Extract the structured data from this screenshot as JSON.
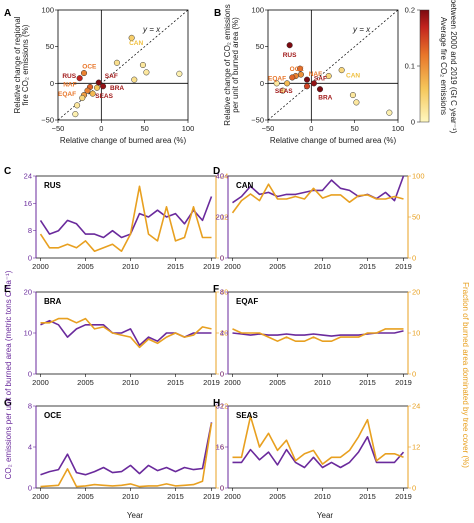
{
  "figure": {
    "colorbar_min": 0,
    "colorbar_max": 0.2
  },
  "chart_data": [
    {
      "panel": "A",
      "type": "scatter",
      "xlabel": "Relative change of burned area (%)",
      "ylabel": "Relative change of regional fire CO₂ emissions (%)",
      "xlim": [
        -50,
        100
      ],
      "ylim": [
        -50,
        100
      ],
      "xticks": [
        -50,
        0,
        50,
        100
      ],
      "yticks": [
        -50,
        0,
        50,
        100
      ],
      "x_tick_labels": [
        "−50",
        "0",
        "50",
        "100"
      ],
      "y_tick_labels": [
        "−50",
        "0",
        "50",
        "100"
      ],
      "identity_label": "y = x",
      "points": [
        {
          "x": -3,
          "y": 1,
          "c": 0.2
        },
        {
          "x": -25,
          "y": 7,
          "c": 0.17
        },
        {
          "x": -20,
          "y": 14,
          "c": 0.11
        },
        {
          "x": -13,
          "y": -5,
          "c": 0.13
        },
        {
          "x": -16,
          "y": -10,
          "c": 0.11
        },
        {
          "x": -20,
          "y": -16,
          "c": 0.09
        },
        {
          "x": -10,
          "y": -14,
          "c": 0.07
        },
        {
          "x": -5,
          "y": -6,
          "c": 0.06
        },
        {
          "x": 2,
          "y": -4,
          "c": 0.19
        },
        {
          "x": -22,
          "y": -20,
          "c": 0.04
        },
        {
          "x": -28,
          "y": -30,
          "c": 0.02
        },
        {
          "x": 35,
          "y": 62,
          "c": 0.05
        },
        {
          "x": 18,
          "y": 28,
          "c": 0.03
        },
        {
          "x": 48,
          "y": 25,
          "c": 0.02
        },
        {
          "x": 52,
          "y": 15,
          "c": 0.02
        },
        {
          "x": 38,
          "y": 5,
          "c": 0.03
        },
        {
          "x": 90,
          "y": 13,
          "c": 0.01
        },
        {
          "x": -30,
          "y": -42,
          "c": 0.01
        }
      ],
      "labels": [
        {
          "text": "RUS",
          "x": -45,
          "y": 7,
          "c": 0.2
        },
        {
          "text": "OCE",
          "x": -22,
          "y": 20,
          "c": 0.11
        },
        {
          "text": "CAN",
          "x": 32,
          "y": 52,
          "c": 0.04
        },
        {
          "text": "SAF",
          "x": 4,
          "y": 7,
          "c": 0.2
        },
        {
          "text": "NAF",
          "x": -44,
          "y": -4,
          "c": 0.13
        },
        {
          "text": "BRA",
          "x": 10,
          "y": -9,
          "c": 0.2
        },
        {
          "text": "EQAF",
          "x": -50,
          "y": -17,
          "c": 0.11
        },
        {
          "text": "SEAS",
          "x": -7,
          "y": -20,
          "c": 0.2
        }
      ]
    },
    {
      "panel": "B",
      "type": "scatter",
      "xlabel": "Relative change of burned area (%)",
      "ylabel": "Relative change of CO₂ emissions per unit of burned area (%)",
      "xlim": [
        -50,
        100
      ],
      "ylim": [
        -50,
        100
      ],
      "xticks": [
        -50,
        0,
        50,
        100
      ],
      "yticks": [
        -50,
        0,
        50,
        100
      ],
      "x_tick_labels": [
        "−50",
        "0",
        "50",
        "100"
      ],
      "y_tick_labels": [
        "−50",
        "0",
        "50",
        "100"
      ],
      "identity_label": "y = x",
      "points": [
        {
          "x": -25,
          "y": 52,
          "c": 0.2
        },
        {
          "x": -13,
          "y": 20,
          "c": 0.13
        },
        {
          "x": -5,
          "y": 5,
          "c": 0.2
        },
        {
          "x": -12,
          "y": 12,
          "c": 0.1
        },
        {
          "x": -18,
          "y": 10,
          "c": 0.11
        },
        {
          "x": -22,
          "y": 8,
          "c": 0.13
        },
        {
          "x": -28,
          "y": 0,
          "c": 0.07
        },
        {
          "x": -33,
          "y": -10,
          "c": 0.03
        },
        {
          "x": -5,
          "y": -4,
          "c": 0.15
        },
        {
          "x": 3,
          "y": 0,
          "c": 0.19
        },
        {
          "x": 10,
          "y": -8,
          "c": 0.2
        },
        {
          "x": 20,
          "y": 10,
          "c": 0.04
        },
        {
          "x": 35,
          "y": 18,
          "c": 0.04
        },
        {
          "x": 48,
          "y": -16,
          "c": 0.02
        },
        {
          "x": 52,
          "y": -26,
          "c": 0.02
        },
        {
          "x": 90,
          "y": -40,
          "c": 0.01
        },
        {
          "x": -40,
          "y": 0,
          "c": 0.02
        }
      ],
      "labels": [
        {
          "text": "RUS",
          "x": -33,
          "y": 36,
          "c": 0.2
        },
        {
          "text": "OCE",
          "x": -25,
          "y": 17,
          "c": 0.11
        },
        {
          "text": "EQAF",
          "x": -50,
          "y": 4,
          "c": 0.11
        },
        {
          "text": "NAF",
          "x": -3,
          "y": 10,
          "c": 0.13
        },
        {
          "text": "SAF",
          "x": 3,
          "y": 4,
          "c": 0.2
        },
        {
          "text": "SEAS",
          "x": -42,
          "y": -13,
          "c": 0.2
        },
        {
          "text": "CAN",
          "x": 40,
          "y": 8,
          "c": 0.04
        },
        {
          "text": "BRA",
          "x": 8,
          "y": -22,
          "c": 0.2
        }
      ]
    },
    {
      "panel": "C",
      "type": "line",
      "title": "RUS",
      "x": [
        2000,
        2001,
        2002,
        2003,
        2004,
        2005,
        2006,
        2007,
        2008,
        2009,
        2010,
        2011,
        2012,
        2013,
        2014,
        2015,
        2016,
        2017,
        2018,
        2019
      ],
      "series": [
        {
          "axis": "left",
          "color": "#6a2a9c",
          "values": [
            11,
            7,
            8,
            11,
            10,
            7,
            7,
            6,
            8,
            6,
            7,
            13,
            12,
            14,
            12,
            13,
            10,
            14,
            11,
            18
          ]
        },
        {
          "axis": "right",
          "color": "#e8a020",
          "values": [
            7,
            3,
            3,
            4,
            3,
            5,
            2,
            3,
            4,
            2,
            7,
            21,
            7,
            5,
            15,
            5,
            6,
            15,
            6,
            6
          ]
        }
      ],
      "ylim_left": [
        0,
        24
      ],
      "ylim_right": [
        0,
        24
      ],
      "yticks_left": [
        0,
        8,
        16,
        24
      ],
      "yticks_right": [
        0,
        12,
        24
      ],
      "xticks": [
        2000,
        2005,
        2010,
        2015,
        2019
      ]
    },
    {
      "panel": "D",
      "type": "line",
      "title": "CAN",
      "x": [
        2000,
        2001,
        2002,
        2003,
        2004,
        2005,
        2006,
        2007,
        2008,
        2009,
        2010,
        2011,
        2012,
        2013,
        2014,
        2015,
        2016,
        2017,
        2018,
        2019
      ],
      "series": [
        {
          "axis": "left",
          "color": "#6a2a9c",
          "values": [
            27,
            30,
            35,
            31,
            32,
            30,
            31,
            31,
            32,
            33,
            33,
            38,
            34,
            33,
            30,
            31,
            29,
            32,
            28,
            40
          ]
        },
        {
          "axis": "right",
          "color": "#e8a020",
          "values": [
            55,
            70,
            78,
            70,
            90,
            72,
            72,
            75,
            72,
            85,
            73,
            77,
            77,
            68,
            76,
            77,
            72,
            72,
            75,
            72
          ]
        }
      ],
      "ylim_left": [
        0,
        40
      ],
      "ylim_right": [
        0,
        100
      ],
      "yticks_left": [
        0,
        20,
        40
      ],
      "yticks_right": [
        0,
        50,
        100
      ],
      "xticks": [
        2000,
        2005,
        2010,
        2015,
        2019
      ]
    },
    {
      "panel": "E",
      "type": "line",
      "title": "BRA",
      "x": [
        2000,
        2001,
        2002,
        2003,
        2004,
        2005,
        2006,
        2007,
        2008,
        2009,
        2010,
        2011,
        2012,
        2013,
        2014,
        2015,
        2016,
        2017,
        2018,
        2019
      ],
      "series": [
        {
          "axis": "left",
          "color": "#6a2a9c",
          "values": [
            12,
            13,
            12,
            9,
            11,
            12,
            12,
            12,
            10,
            10,
            11,
            7,
            9,
            8,
            10,
            10,
            9,
            10,
            10,
            10
          ]
        },
        {
          "axis": "right",
          "color": "#e8a020",
          "values": [
            25,
            25,
            27,
            27,
            25,
            27,
            22,
            23,
            20,
            19,
            18,
            13,
            17,
            15,
            18,
            20,
            18,
            19,
            23,
            22
          ]
        }
      ],
      "ylim_left": [
        0,
        20
      ],
      "ylim_right": [
        0,
        40
      ],
      "yticks_left": [
        0,
        10,
        20
      ],
      "yticks_right": [
        0,
        20,
        40
      ],
      "xticks": [
        2000,
        2005,
        2010,
        2015,
        2019
      ]
    },
    {
      "panel": "F",
      "type": "line",
      "title": "EQAF",
      "x": [
        2000,
        2001,
        2002,
        2003,
        2004,
        2005,
        2006,
        2007,
        2008,
        2009,
        2010,
        2011,
        2012,
        2013,
        2014,
        2015,
        2016,
        2017,
        2018,
        2019
      ],
      "series": [
        {
          "axis": "left",
          "color": "#6a2a9c",
          "values": [
            4.0,
            3.9,
            3.8,
            3.9,
            3.8,
            3.8,
            3.9,
            3.8,
            3.8,
            3.9,
            3.8,
            3.7,
            3.8,
            3.8,
            3.8,
            3.9,
            4.0,
            4.0,
            4.0,
            4.2
          ]
        },
        {
          "axis": "right",
          "color": "#e8a020",
          "values": [
            11,
            10,
            10,
            10,
            9,
            8,
            9,
            8,
            8,
            9,
            8,
            8,
            9,
            9,
            9,
            10,
            10,
            11,
            11,
            11
          ]
        }
      ],
      "ylim_left": [
        0,
        8
      ],
      "ylim_right": [
        0,
        20
      ],
      "yticks_left": [
        0,
        4,
        8
      ],
      "yticks_right": [
        0,
        10,
        20
      ],
      "xticks": [
        2000,
        2005,
        2010,
        2015,
        2019
      ]
    },
    {
      "panel": "G",
      "type": "line",
      "title": "OCE",
      "x": [
        2000,
        2001,
        2002,
        2003,
        2004,
        2005,
        2006,
        2007,
        2008,
        2009,
        2010,
        2011,
        2012,
        2013,
        2014,
        2015,
        2016,
        2017,
        2018,
        2019
      ],
      "series": [
        {
          "axis": "left",
          "color": "#6a2a9c",
          "values": [
            1.3,
            1.6,
            1.8,
            3.3,
            1.5,
            1.3,
            1.6,
            2.0,
            1.5,
            1.6,
            2.2,
            1.4,
            2.2,
            1.7,
            2.0,
            1.6,
            2.0,
            1.8,
            1.9,
            6.4
          ]
        },
        {
          "axis": "right",
          "color": "#e8a020",
          "values": [
            0.2,
            0.3,
            0.4,
            2.8,
            0.2,
            0.3,
            0.5,
            0.4,
            0.3,
            0.4,
            0.6,
            0.2,
            0.3,
            0.3,
            0.6,
            0.3,
            0.4,
            0.5,
            1.0,
            9.5
          ]
        }
      ],
      "ylim_left": [
        0,
        8
      ],
      "ylim_right": [
        0,
        12
      ],
      "yticks_left": [
        0,
        4,
        8
      ],
      "yticks_right": [
        0,
        6,
        12
      ],
      "xticks": [
        2000,
        2005,
        2010,
        2015,
        2019
      ]
    },
    {
      "panel": "H",
      "type": "line",
      "title": "SEAS",
      "x": [
        2000,
        2001,
        2002,
        2003,
        2004,
        2005,
        2006,
        2007,
        2008,
        2009,
        2010,
        2011,
        2012,
        2013,
        2014,
        2015,
        2016,
        2017,
        2018,
        2019
      ],
      "series": [
        {
          "axis": "left",
          "color": "#6a2a9c",
          "values": [
            10,
            10,
            15,
            11,
            14,
            9,
            15,
            10,
            8,
            12,
            8,
            10,
            8,
            10,
            14,
            20,
            10,
            10,
            10,
            14
          ]
        },
        {
          "axis": "right",
          "color": "#e8a020",
          "values": [
            9,
            9,
            21,
            12,
            16,
            11,
            14,
            8,
            10,
            11,
            7,
            9,
            9,
            11,
            15,
            20,
            8,
            10,
            10,
            9
          ]
        }
      ],
      "ylim_left": [
        0,
        32
      ],
      "ylim_right": [
        0,
        24
      ],
      "yticks_left": [
        0,
        16,
        32
      ],
      "yticks_right": [
        0,
        12,
        24
      ],
      "xticks": [
        2000,
        2005,
        2010,
        2015,
        2019
      ]
    }
  ],
  "shared": {
    "year_label": "Year",
    "left_ylabel": "CO₂ emissions per unit of burned area (metric tons C ha⁻¹)",
    "right_ylabel": "Fraction of burned area dominated by tree cover (%)",
    "colorbar_label_1": "Average fire CO₂ emissions",
    "colorbar_label_2": "between 2000 and 2019 (Gt C year⁻¹)",
    "colorbar_ticks": [
      "0",
      "0.1",
      "0.2"
    ]
  }
}
